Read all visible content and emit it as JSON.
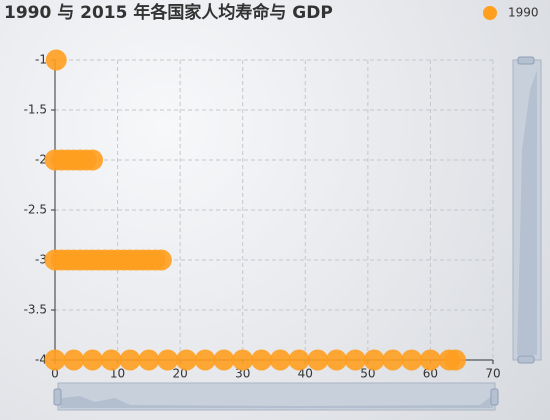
{
  "chart_data": {
    "type": "scatter",
    "title": "1990 与 2015 年各国家人均寿命与 GDP",
    "series": [
      {
        "name": "1990",
        "color": "#ff9f1f",
        "x": [
          0.2,
          0,
          1,
          2,
          3,
          4,
          5,
          6,
          0,
          1,
          2,
          3,
          4,
          5,
          6,
          7,
          8,
          9,
          10,
          11,
          12,
          13,
          14,
          15,
          16,
          17,
          0,
          3,
          6,
          9,
          12,
          15,
          18,
          21,
          24,
          27,
          30,
          33,
          36,
          39,
          42,
          45,
          48,
          51,
          54,
          57,
          60,
          63,
          64
        ],
        "y": [
          -1,
          -2,
          -2,
          -2,
          -2,
          -2,
          -2,
          -2,
          -3,
          -3,
          -3,
          -3,
          -3,
          -3,
          -3,
          -3,
          -3,
          -3,
          -3,
          -3,
          -3,
          -3,
          -3,
          -3,
          -3,
          -3,
          -4,
          -4,
          -4,
          -4,
          -4,
          -4,
          -4,
          -4,
          -4,
          -4,
          -4,
          -4,
          -4,
          -4,
          -4,
          -4,
          -4,
          -4,
          -4,
          -4,
          -4,
          -4,
          -4
        ]
      }
    ],
    "xlim": [
      0,
      70
    ],
    "xticks": [
      0,
      10,
      20,
      30,
      40,
      50,
      60,
      70
    ],
    "ylim": [
      -4,
      -1
    ],
    "yticks": [
      -1,
      -1.5,
      -2,
      -2.5,
      -3,
      -3.5,
      -4
    ],
    "grid": true,
    "legend": "top-right"
  }
}
